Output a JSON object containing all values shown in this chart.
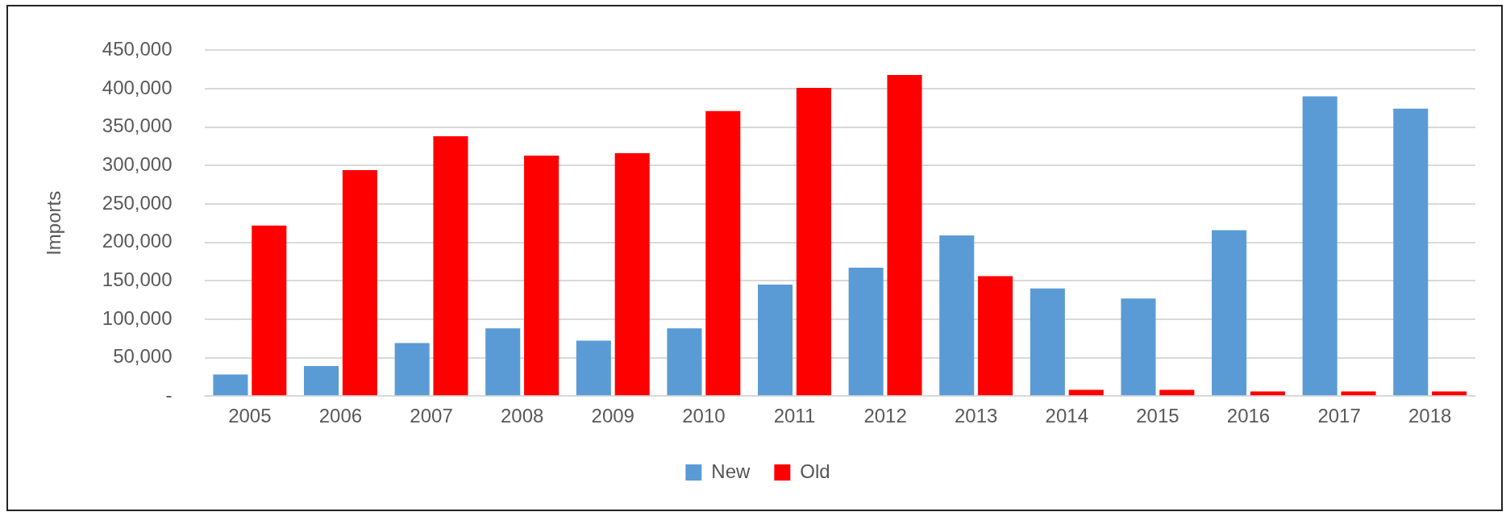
{
  "chart_data": {
    "type": "bar",
    "ylabel": "Imports",
    "categories": [
      "2005",
      "2006",
      "2007",
      "2008",
      "2009",
      "2010",
      "2011",
      "2012",
      "2013",
      "2014",
      "2015",
      "2016",
      "2017",
      "2018"
    ],
    "series": [
      {
        "name": "New",
        "color": "#5b9bd5",
        "values": [
          28000,
          39000,
          69000,
          88000,
          72000,
          88000,
          145000,
          167000,
          209000,
          140000,
          127000,
          216000,
          390000,
          374000
        ]
      },
      {
        "name": "Old",
        "color": "#ff0000",
        "values": [
          222000,
          294000,
          338000,
          313000,
          316000,
          371000,
          401000,
          418000,
          156000,
          8000,
          8000,
          6000,
          6000,
          6000
        ]
      }
    ],
    "ylim": [
      0,
      450000
    ],
    "yticks": [
      {
        "value": 0,
        "label": "-"
      },
      {
        "value": 50000,
        "label": "50,000"
      },
      {
        "value": 100000,
        "label": "100,000"
      },
      {
        "value": 150000,
        "label": "150,000"
      },
      {
        "value": 200000,
        "label": "200,000"
      },
      {
        "value": 250000,
        "label": "250,000"
      },
      {
        "value": 300000,
        "label": "300,000"
      },
      {
        "value": 350000,
        "label": "350,000"
      },
      {
        "value": 400000,
        "label": "400,000"
      },
      {
        "value": 450000,
        "label": "450,000"
      }
    ],
    "grid": "y",
    "legend": "bottom"
  }
}
